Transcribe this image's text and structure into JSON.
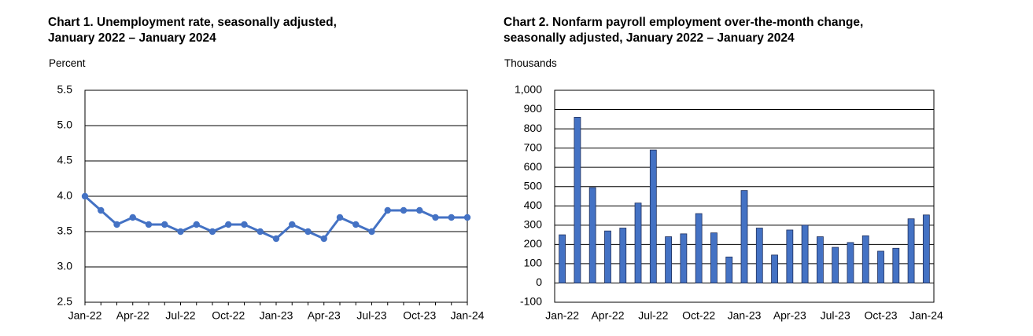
{
  "chart_data": [
    {
      "type": "line",
      "title_lines": [
        "Chart 1. Unemployment rate, seasonally adjusted,",
        "January 2022 – January 2024"
      ],
      "ylabel": "Percent",
      "xlabel": "",
      "ylim": [
        2.5,
        5.5
      ],
      "yticks": [
        "2.5",
        "3.0",
        "3.5",
        "4.0",
        "4.5",
        "5.0",
        "5.5"
      ],
      "x_tick_labels": [
        "Jan-22",
        "Apr-22",
        "Jul-22",
        "Oct-22",
        "Jan-23",
        "Apr-23",
        "Jul-23",
        "Oct-23",
        "Jan-24"
      ],
      "x": [
        "Jan-22",
        "Feb-22",
        "Mar-22",
        "Apr-22",
        "May-22",
        "Jun-22",
        "Jul-22",
        "Aug-22",
        "Sep-22",
        "Oct-22",
        "Nov-22",
        "Dec-22",
        "Jan-23",
        "Feb-23",
        "Mar-23",
        "Apr-23",
        "May-23",
        "Jun-23",
        "Jul-23",
        "Aug-23",
        "Sep-23",
        "Oct-23",
        "Nov-23",
        "Dec-23",
        "Jan-24"
      ],
      "values": [
        4.0,
        3.8,
        3.6,
        3.7,
        3.6,
        3.6,
        3.5,
        3.6,
        3.5,
        3.6,
        3.6,
        3.5,
        3.4,
        3.6,
        3.5,
        3.4,
        3.7,
        3.6,
        3.5,
        3.8,
        3.8,
        3.8,
        3.7,
        3.7,
        3.7
      ],
      "grid": true,
      "color": "#4472c4"
    },
    {
      "type": "bar",
      "title_lines": [
        "Chart 2. Nonfarm payroll employment over-the-month change,",
        "seasonally adjusted, January 2022 – January 2024"
      ],
      "ylabel": "Thousands",
      "xlabel": "",
      "ylim": [
        -100,
        1000
      ],
      "yticks": [
        "-100",
        "0",
        "100",
        "200",
        "300",
        "400",
        "500",
        "600",
        "700",
        "800",
        "900",
        "1,000"
      ],
      "x_tick_labels": [
        "Jan-22",
        "Apr-22",
        "Jul-22",
        "Oct-22",
        "Jan-23",
        "Apr-23",
        "Jul-23",
        "Oct-23",
        "Jan-24"
      ],
      "categories": [
        "Jan-22",
        "Feb-22",
        "Mar-22",
        "Apr-22",
        "May-22",
        "Jun-22",
        "Jul-22",
        "Aug-22",
        "Sep-22",
        "Oct-22",
        "Nov-22",
        "Dec-22",
        "Jan-23",
        "Feb-23",
        "Mar-23",
        "Apr-23",
        "May-23",
        "Jun-23",
        "Jul-23",
        "Aug-23",
        "Sep-23",
        "Oct-23",
        "Nov-23",
        "Dec-23",
        "Jan-24"
      ],
      "values": [
        250,
        860,
        495,
        270,
        285,
        415,
        690,
        240,
        255,
        360,
        260,
        135,
        480,
        285,
        145,
        275,
        300,
        240,
        185,
        210,
        245,
        165,
        180,
        333,
        353
      ],
      "grid": true,
      "color": "#4472c4"
    }
  ]
}
